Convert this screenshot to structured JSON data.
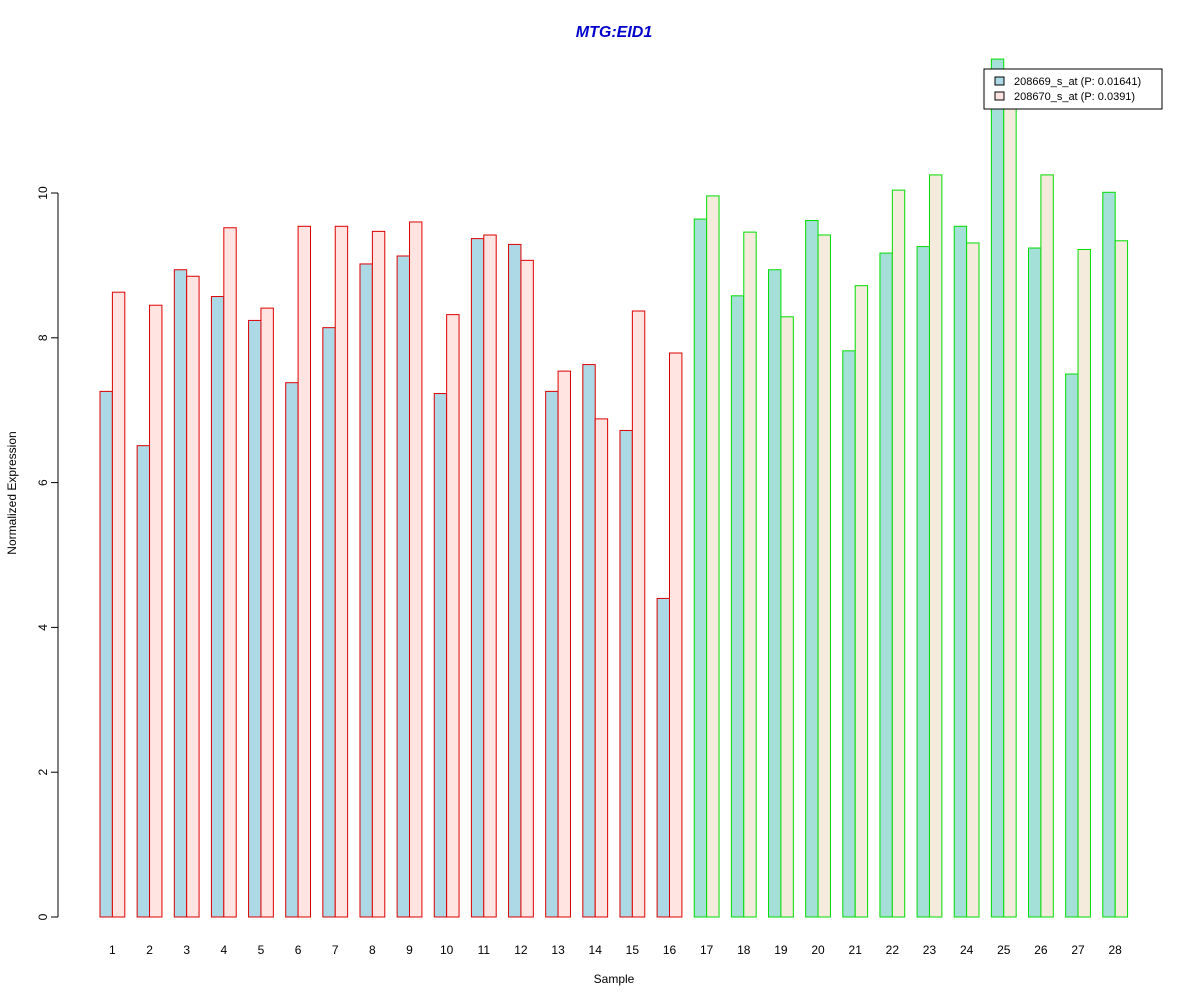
{
  "chart_data": {
    "type": "bar",
    "title": "MTG:EID1",
    "xlabel": "Sample",
    "ylabel": "Normalized Expression",
    "ylim": [
      0,
      12
    ],
    "yticks": [
      0,
      2,
      4,
      6,
      8,
      10
    ],
    "categories": [
      "1",
      "2",
      "3",
      "4",
      "5",
      "6",
      "7",
      "8",
      "9",
      "10",
      "11",
      "12",
      "13",
      "14",
      "15",
      "16",
      "17",
      "18",
      "19",
      "20",
      "21",
      "22",
      "23",
      "24",
      "25",
      "26",
      "27",
      "28"
    ],
    "group_sizes": [
      16,
      12
    ],
    "series": [
      {
        "name": "208669_s_at (P: 0.01641)",
        "values": [
          7.26,
          6.51,
          8.94,
          8.57,
          8.24,
          7.38,
          8.14,
          9.02,
          9.13,
          7.23,
          9.37,
          9.29,
          7.26,
          7.63,
          6.72,
          4.4,
          9.64,
          8.58,
          8.94,
          9.62,
          7.82,
          9.17,
          9.26,
          9.54,
          11.85,
          9.24,
          7.5,
          10.01
        ]
      },
      {
        "name": "208670_s_at (P: 0.0391)",
        "values": [
          8.63,
          8.45,
          8.85,
          9.52,
          8.41,
          9.54,
          9.54,
          9.47,
          9.6,
          8.32,
          9.42,
          9.07,
          7.54,
          6.88,
          8.37,
          7.79,
          9.96,
          9.46,
          8.29,
          9.42,
          8.72,
          10.04,
          10.25,
          9.31,
          11.4,
          10.25,
          9.22,
          9.34
        ]
      }
    ],
    "colors": {
      "series1_fill": "#add8e6",
      "series2_fill": "#ffe4e1",
      "series1_fill_group2": "#a4dfd8",
      "series2_fill_group2": "#f5ebdc",
      "group1_border": "#dd0000",
      "group2_border": "#00dd00",
      "title": "#0000cc"
    },
    "legend": {
      "position": "top-right",
      "entries": [
        "208669_s_at (P: 0.01641)",
        "208670_s_at (P: 0.0391)"
      ]
    },
    "grid": false
  }
}
